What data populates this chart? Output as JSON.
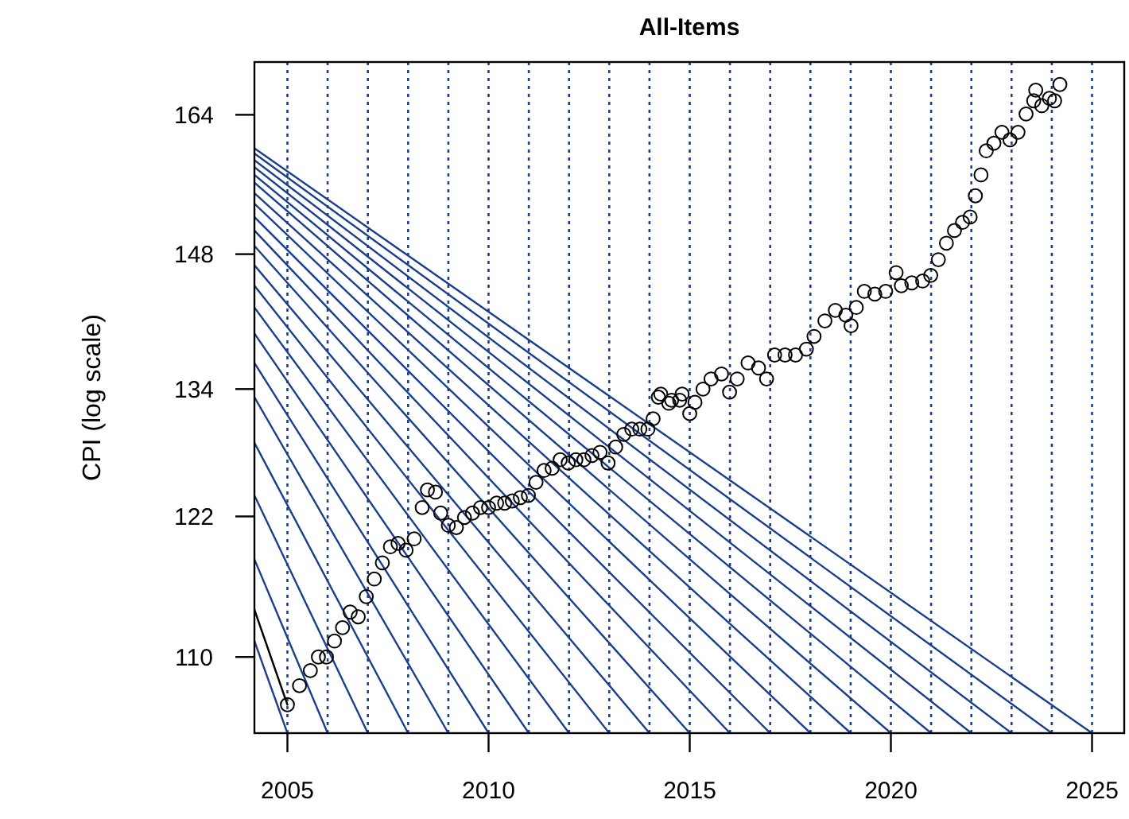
{
  "chart_data": {
    "type": "scatter",
    "title": "All-Items",
    "ylabel": "CPI (log scale)",
    "log": "y",
    "xlim": [
      2004.18,
      2025.8
    ],
    "ylim": [
      104,
      170.5
    ],
    "xticks": [
      2005,
      2010,
      2015,
      2020,
      2025
    ],
    "yticks": [
      110,
      122,
      134,
      148,
      164
    ],
    "grid": false,
    "series": [
      {
        "type": "line",
        "color": "#1b3f8b",
        "line_style": "solid",
        "x": [
          2004.18,
          2005
        ],
        "values": [
          111.3,
          104
        ]
      },
      {
        "type": "line",
        "color": "#1b3f8b",
        "line_style": "solid",
        "x": [
          2004.18,
          2006
        ],
        "values": [
          118.2,
          104
        ]
      },
      {
        "type": "line",
        "color": "#1b3f8b",
        "line_style": "solid",
        "x": [
          2004.18,
          2007
        ],
        "values": [
          123.9,
          104
        ]
      },
      {
        "type": "line",
        "color": "#1b3f8b",
        "line_style": "solid",
        "x": [
          2004.18,
          2008
        ],
        "values": [
          128.8,
          104
        ]
      },
      {
        "type": "line",
        "color": "#1b3f8b",
        "line_style": "solid",
        "x": [
          2004.18,
          2009
        ],
        "values": [
          133.2,
          104
        ]
      },
      {
        "type": "line",
        "color": "#1b3f8b",
        "line_style": "solid",
        "x": [
          2004.18,
          2010
        ],
        "values": [
          136.6,
          104
        ]
      },
      {
        "type": "line",
        "color": "#1b3f8b",
        "line_style": "solid",
        "x": [
          2004.18,
          2011
        ],
        "values": [
          139.6,
          104
        ]
      },
      {
        "type": "line",
        "color": "#1b3f8b",
        "line_style": "solid",
        "x": [
          2004.18,
          2012
        ],
        "values": [
          142.3,
          104
        ]
      },
      {
        "type": "line",
        "color": "#1b3f8b",
        "line_style": "solid",
        "x": [
          2004.18,
          2013
        ],
        "values": [
          144.6,
          104
        ]
      },
      {
        "type": "line",
        "color": "#1b3f8b",
        "line_style": "solid",
        "x": [
          2004.18,
          2014
        ],
        "values": [
          146.8,
          104
        ]
      },
      {
        "type": "line",
        "color": "#1b3f8b",
        "line_style": "solid",
        "x": [
          2004.18,
          2015
        ],
        "values": [
          148.9,
          104
        ]
      },
      {
        "type": "line",
        "color": "#1b3f8b",
        "line_style": "solid",
        "x": [
          2004.18,
          2016
        ],
        "values": [
          150.6,
          104
        ]
      },
      {
        "type": "line",
        "color": "#1b3f8b",
        "line_style": "solid",
        "x": [
          2004.18,
          2017
        ],
        "values": [
          152.1,
          104
        ]
      },
      {
        "type": "line",
        "color": "#1b3f8b",
        "line_style": "solid",
        "x": [
          2004.18,
          2018
        ],
        "values": [
          153.6,
          104
        ]
      },
      {
        "type": "line",
        "color": "#1b3f8b",
        "line_style": "solid",
        "x": [
          2004.18,
          2019
        ],
        "values": [
          154.8,
          104
        ]
      },
      {
        "type": "line",
        "color": "#1b3f8b",
        "line_style": "solid",
        "x": [
          2004.18,
          2020
        ],
        "values": [
          156.0,
          104
        ]
      },
      {
        "type": "line",
        "color": "#1b3f8b",
        "line_style": "solid",
        "x": [
          2004.18,
          2021
        ],
        "values": [
          156.9,
          104
        ]
      },
      {
        "type": "line",
        "color": "#1b3f8b",
        "line_style": "solid",
        "x": [
          2004.18,
          2022
        ],
        "values": [
          157.8,
          104
        ]
      },
      {
        "type": "line",
        "color": "#1b3f8b",
        "line_style": "solid",
        "x": [
          2004.18,
          2023
        ],
        "values": [
          158.6,
          104
        ]
      },
      {
        "type": "line",
        "color": "#1b3f8b",
        "line_style": "solid",
        "x": [
          2004.18,
          2024
        ],
        "values": [
          159.4,
          104
        ]
      },
      {
        "type": "line",
        "color": "#1b3f8b",
        "line_style": "solid",
        "x": [
          2004.18,
          2025
        ],
        "values": [
          160.0,
          104
        ]
      },
      {
        "type": "line",
        "color": "#000000",
        "line_style": "solid",
        "x": [
          2004.18,
          2005
        ],
        "values": [
          113.9,
          106.2
        ]
      },
      {
        "color": "#000000",
        "marker": "circle",
        "x": [
          2005.0,
          2005.3,
          2005.57,
          2005.77,
          2005.97,
          2006.17,
          2006.37,
          2006.56,
          2006.76,
          2006.96,
          2007.16,
          2007.36,
          2007.56,
          2007.75,
          2007.95,
          2008.15,
          2008.35,
          2008.48,
          2008.68,
          2008.81,
          2009.0,
          2009.2,
          2009.4,
          2009.6,
          2009.8,
          2010.0,
          2010.2,
          2010.4,
          2010.59,
          2010.79,
          2010.99,
          2011.18,
          2011.38,
          2011.58,
          2011.78,
          2011.98,
          2012.17,
          2012.37,
          2012.57,
          2012.77,
          2012.97,
          2013.16,
          2013.36,
          2013.56,
          2013.76,
          2013.96,
          2014.09,
          2014.22,
          2014.28,
          2014.48,
          2014.55,
          2014.75,
          2014.81,
          2015.0,
          2015.13,
          2015.33,
          2015.53,
          2015.79,
          2015.99,
          2016.18,
          2016.45,
          2016.71,
          2016.91,
          2017.11,
          2017.37,
          2017.63,
          2017.9,
          2018.09,
          2018.36,
          2018.62,
          2018.88,
          2019.01,
          2019.14,
          2019.34,
          2019.6,
          2019.87,
          2020.13,
          2020.26,
          2020.52,
          2020.79,
          2020.99,
          2021.18,
          2021.38,
          2021.58,
          2021.78,
          2021.97,
          2022.1,
          2022.24,
          2022.37,
          2022.56,
          2022.76,
          2022.96,
          2023.16,
          2023.36,
          2023.55,
          2023.6,
          2023.75,
          2023.94,
          2024.07,
          2024.2
        ],
        "values": [
          106.2,
          107.7,
          108.9,
          110.0,
          110.0,
          111.3,
          112.4,
          113.7,
          113.3,
          115.0,
          116.5,
          117.9,
          119.3,
          119.6,
          119.0,
          120.0,
          122.8,
          124.4,
          124.2,
          122.3,
          121.2,
          121.0,
          121.9,
          122.3,
          122.8,
          122.8,
          123.2,
          123.2,
          123.4,
          123.7,
          123.9,
          125.1,
          126.2,
          126.4,
          127.2,
          126.9,
          127.2,
          127.2,
          127.6,
          127.9,
          126.9,
          128.4,
          129.6,
          130.1,
          130.1,
          130.1,
          131.1,
          133.2,
          133.5,
          132.6,
          132.9,
          132.9,
          133.5,
          131.6,
          132.7,
          134.0,
          135.0,
          135.5,
          133.7,
          135.0,
          136.6,
          136.1,
          135.0,
          137.4,
          137.4,
          137.4,
          138.0,
          139.3,
          140.9,
          142.0,
          141.5,
          140.4,
          142.3,
          144.0,
          143.7,
          144.0,
          146.0,
          144.6,
          144.9,
          145.1,
          145.7,
          147.4,
          149.2,
          150.6,
          151.5,
          152.1,
          154.5,
          156.9,
          159.7,
          160.6,
          161.9,
          161.0,
          161.9,
          164.1,
          165.7,
          167.0,
          165.1,
          166.0,
          165.7,
          167.7
        ]
      }
    ],
    "ref_lines": [
      {
        "axis": "x",
        "value": 2005,
        "color": "#1b3f8b",
        "line_style": "dotted"
      },
      {
        "axis": "x",
        "value": 2006,
        "color": "#1b3f8b",
        "line_style": "dotted"
      },
      {
        "axis": "x",
        "value": 2007,
        "color": "#1b3f8b",
        "line_style": "dotted"
      },
      {
        "axis": "x",
        "value": 2008,
        "color": "#1b3f8b",
        "line_style": "dotted"
      },
      {
        "axis": "x",
        "value": 2009,
        "color": "#1b3f8b",
        "line_style": "dotted"
      },
      {
        "axis": "x",
        "value": 2010,
        "color": "#1b3f8b",
        "line_style": "dotted"
      },
      {
        "axis": "x",
        "value": 2011,
        "color": "#1b3f8b",
        "line_style": "dotted"
      },
      {
        "axis": "x",
        "value": 2012,
        "color": "#1b3f8b",
        "line_style": "dotted"
      },
      {
        "axis": "x",
        "value": 2013,
        "color": "#1b3f8b",
        "line_style": "dotted"
      },
      {
        "axis": "x",
        "value": 2014,
        "color": "#1b3f8b",
        "line_style": "dotted"
      },
      {
        "axis": "x",
        "value": 2015,
        "color": "#1b3f8b",
        "line_style": "dotted"
      },
      {
        "axis": "x",
        "value": 2016,
        "color": "#1b3f8b",
        "line_style": "dotted"
      },
      {
        "axis": "x",
        "value": 2017,
        "color": "#1b3f8b",
        "line_style": "dotted"
      },
      {
        "axis": "x",
        "value": 2018,
        "color": "#1b3f8b",
        "line_style": "dotted"
      },
      {
        "axis": "x",
        "value": 2019,
        "color": "#1b3f8b",
        "line_style": "dotted"
      },
      {
        "axis": "x",
        "value": 2020,
        "color": "#1b3f8b",
        "line_style": "dotted"
      },
      {
        "axis": "x",
        "value": 2021,
        "color": "#1b3f8b",
        "line_style": "dotted"
      },
      {
        "axis": "x",
        "value": 2022,
        "color": "#1b3f8b",
        "line_style": "dotted"
      },
      {
        "axis": "x",
        "value": 2023,
        "color": "#1b3f8b",
        "line_style": "dotted"
      },
      {
        "axis": "x",
        "value": 2024,
        "color": "#1b3f8b",
        "line_style": "dotted"
      },
      {
        "axis": "x",
        "value": 2025,
        "color": "#1b3f8b",
        "line_style": "dotted"
      }
    ]
  }
}
